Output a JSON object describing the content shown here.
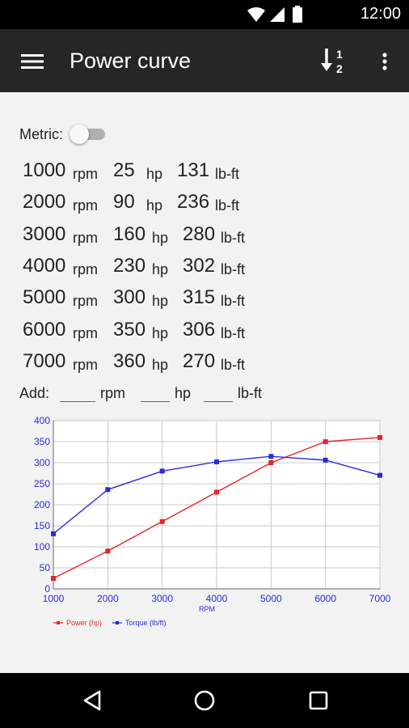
{
  "status_bar": {
    "time": "12:00"
  },
  "app_bar": {
    "title": "Power curve"
  },
  "metric": {
    "label": "Metric:",
    "enabled": false
  },
  "rows": [
    {
      "rpm": "1000",
      "hp": "25",
      "torque": "131"
    },
    {
      "rpm": "2000",
      "hp": "90",
      "torque": "236"
    },
    {
      "rpm": "3000",
      "hp": "160",
      "torque": "280"
    },
    {
      "rpm": "4000",
      "hp": "230",
      "torque": "302"
    },
    {
      "rpm": "5000",
      "hp": "300",
      "torque": "315"
    },
    {
      "rpm": "6000",
      "hp": "350",
      "torque": "306"
    },
    {
      "rpm": "7000",
      "hp": "360",
      "torque": "270"
    }
  ],
  "units": {
    "rpm": "rpm",
    "hp": "hp",
    "torque": "lb-ft"
  },
  "add_row": {
    "label": "Add:",
    "rpm_unit": "rpm",
    "hp_unit": "hp",
    "torque_unit": "lb-ft"
  },
  "chart_data": {
    "type": "line",
    "x": [
      1000,
      2000,
      3000,
      4000,
      5000,
      6000,
      7000
    ],
    "series": [
      {
        "name": "Power (hp)",
        "color": "#e8232a",
        "values": [
          25,
          90,
          160,
          230,
          300,
          350,
          360
        ]
      },
      {
        "name": "Torque (lb/ft)",
        "color": "#2a2ae0",
        "values": [
          131,
          236,
          280,
          302,
          315,
          306,
          270
        ]
      }
    ],
    "xlabel": "RPM",
    "ylabel": "",
    "xlim": [
      1000,
      7000
    ],
    "ylim": [
      0,
      400
    ],
    "x_ticks": [
      1000,
      2000,
      3000,
      4000,
      5000,
      6000,
      7000
    ],
    "y_ticks": [
      0,
      50,
      100,
      150,
      200,
      250,
      300,
      350,
      400
    ],
    "grid": true,
    "legend_position": "bottom-left"
  }
}
